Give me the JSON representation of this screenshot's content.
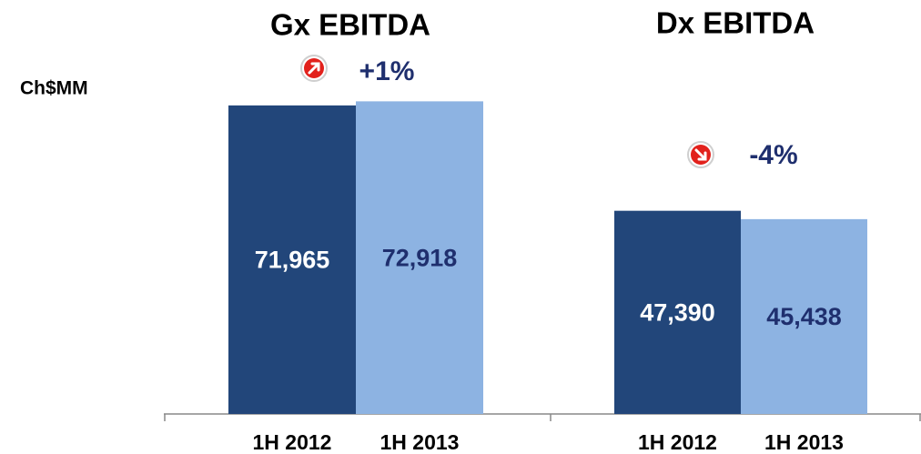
{
  "chart_data": [
    {
      "type": "bar",
      "title": "Gx EBITDA",
      "ylabel": "Ch$MM",
      "categories": [
        "1H 2012",
        "1H 2013"
      ],
      "values": [
        71965,
        72918
      ],
      "value_labels": [
        "71,965",
        "72,918"
      ],
      "colors": [
        "#22467a",
        "#8db3e2"
      ],
      "ylim": [
        0,
        80000
      ],
      "annotation": "+1%",
      "trend": "up"
    },
    {
      "type": "bar",
      "title": "Dx EBITDA",
      "categories": [
        "1H 2012",
        "1H 2013"
      ],
      "values": [
        47390,
        45438
      ],
      "value_labels": [
        "47,390",
        "45,438"
      ],
      "colors": [
        "#22467a",
        "#8db3e2"
      ],
      "ylim": [
        0,
        80000
      ],
      "annotation": "-4%",
      "trend": "down"
    }
  ]
}
